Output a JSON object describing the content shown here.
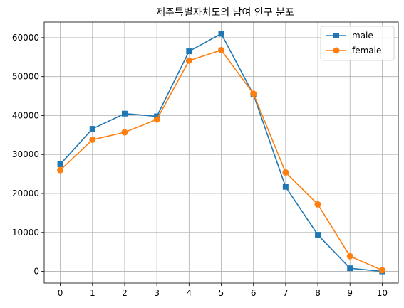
{
  "chart_data": {
    "type": "line",
    "title": "제주특별자치도의 남여 인구 분포",
    "xlabel": "",
    "ylabel": "",
    "x": [
      0,
      1,
      2,
      3,
      4,
      5,
      6,
      7,
      8,
      9,
      10
    ],
    "xlim": [
      -0.5,
      10.5
    ],
    "ylim": [
      -3000,
      64000
    ],
    "yticks": [
      0,
      10000,
      20000,
      30000,
      40000,
      50000,
      60000
    ],
    "grid": true,
    "legend_position": "top-right",
    "series": [
      {
        "name": "male",
        "color": "#1f77b4",
        "marker": "square",
        "values": [
          27500,
          36600,
          40500,
          39800,
          56500,
          61000,
          45400,
          21700,
          9400,
          800,
          0
        ]
      },
      {
        "name": "female",
        "color": "#ff7f0e",
        "marker": "circle",
        "values": [
          26000,
          33800,
          35700,
          39000,
          54100,
          56800,
          45600,
          25400,
          17200,
          3900,
          300
        ]
      }
    ]
  }
}
